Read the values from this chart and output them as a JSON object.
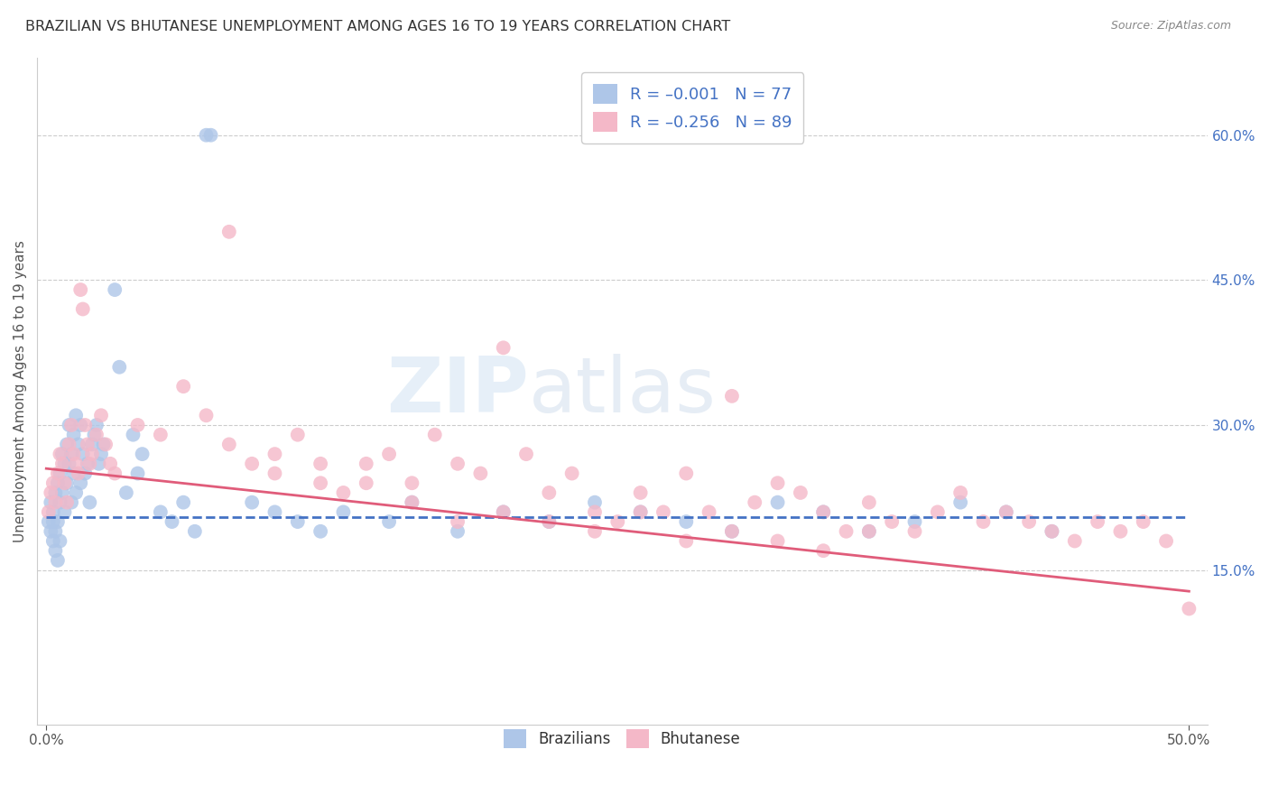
{
  "title": "BRAZILIAN VS BHUTANESE UNEMPLOYMENT AMONG AGES 16 TO 19 YEARS CORRELATION CHART",
  "source": "Source: ZipAtlas.com",
  "ylabel": "Unemployment Among Ages 16 to 19 years",
  "xlim": [
    0.0,
    0.5
  ],
  "ylim": [
    0.0,
    0.68
  ],
  "ytick_vals": [
    0.15,
    0.3,
    0.45,
    0.6
  ],
  "ytick_labels": [
    "15.0%",
    "30.0%",
    "45.0%",
    "60.0%"
  ],
  "watermark_text": "ZIPatlas",
  "brazil_color": "#aec6e8",
  "bhutan_color": "#f4b8c8",
  "brazil_line_color": "#4472c4",
  "bhutan_line_color": "#e05c7a",
  "grid_color": "#cccccc",
  "brazil_line_start_y": 0.205,
  "brazil_line_end_y": 0.205,
  "bhutan_line_start_y": 0.255,
  "bhutan_line_end_y": 0.128,
  "brazil_points_x": [
    0.001,
    0.002,
    0.002,
    0.003,
    0.003,
    0.003,
    0.004,
    0.004,
    0.004,
    0.005,
    0.005,
    0.005,
    0.006,
    0.006,
    0.006,
    0.007,
    0.007,
    0.008,
    0.008,
    0.009,
    0.009,
    0.01,
    0.01,
    0.011,
    0.011,
    0.012,
    0.012,
    0.013,
    0.013,
    0.014,
    0.015,
    0.015,
    0.016,
    0.017,
    0.018,
    0.019,
    0.02,
    0.021,
    0.022,
    0.023,
    0.024,
    0.025,
    0.03,
    0.032,
    0.035,
    0.038,
    0.04,
    0.042,
    0.05,
    0.055,
    0.06,
    0.065,
    0.07,
    0.072,
    0.09,
    0.1,
    0.11,
    0.12,
    0.13,
    0.15,
    0.16,
    0.18,
    0.2,
    0.22,
    0.24,
    0.26,
    0.28,
    0.3,
    0.32,
    0.34,
    0.36,
    0.38,
    0.4,
    0.42,
    0.44
  ],
  "brazil_points_y": [
    0.2,
    0.22,
    0.19,
    0.21,
    0.18,
    0.2,
    0.23,
    0.17,
    0.19,
    0.24,
    0.2,
    0.16,
    0.25,
    0.22,
    0.18,
    0.27,
    0.23,
    0.26,
    0.21,
    0.28,
    0.24,
    0.3,
    0.26,
    0.27,
    0.22,
    0.29,
    0.25,
    0.31,
    0.23,
    0.28,
    0.3,
    0.24,
    0.27,
    0.25,
    0.26,
    0.22,
    0.28,
    0.29,
    0.3,
    0.26,
    0.27,
    0.28,
    0.44,
    0.36,
    0.23,
    0.29,
    0.25,
    0.27,
    0.21,
    0.2,
    0.22,
    0.19,
    0.6,
    0.6,
    0.22,
    0.21,
    0.2,
    0.19,
    0.21,
    0.2,
    0.22,
    0.19,
    0.21,
    0.2,
    0.22,
    0.21,
    0.2,
    0.19,
    0.22,
    0.21,
    0.19,
    0.2,
    0.22,
    0.21,
    0.19
  ],
  "bhutan_points_x": [
    0.001,
    0.002,
    0.003,
    0.004,
    0.005,
    0.006,
    0.007,
    0.008,
    0.009,
    0.01,
    0.011,
    0.012,
    0.013,
    0.014,
    0.015,
    0.016,
    0.017,
    0.018,
    0.019,
    0.02,
    0.022,
    0.024,
    0.026,
    0.028,
    0.03,
    0.04,
    0.05,
    0.06,
    0.07,
    0.08,
    0.09,
    0.1,
    0.11,
    0.12,
    0.13,
    0.14,
    0.15,
    0.16,
    0.17,
    0.18,
    0.19,
    0.2,
    0.21,
    0.22,
    0.23,
    0.24,
    0.25,
    0.26,
    0.27,
    0.28,
    0.29,
    0.3,
    0.31,
    0.32,
    0.33,
    0.34,
    0.35,
    0.36,
    0.37,
    0.38,
    0.39,
    0.4,
    0.41,
    0.42,
    0.43,
    0.44,
    0.45,
    0.46,
    0.47,
    0.48,
    0.49,
    0.5,
    0.08,
    0.1,
    0.12,
    0.14,
    0.16,
    0.18,
    0.2,
    0.22,
    0.24,
    0.26,
    0.28,
    0.3,
    0.32,
    0.34,
    0.36
  ],
  "bhutan_points_y": [
    0.21,
    0.23,
    0.24,
    0.22,
    0.25,
    0.27,
    0.26,
    0.24,
    0.22,
    0.28,
    0.3,
    0.27,
    0.26,
    0.25,
    0.44,
    0.42,
    0.3,
    0.28,
    0.26,
    0.27,
    0.29,
    0.31,
    0.28,
    0.26,
    0.25,
    0.3,
    0.29,
    0.34,
    0.31,
    0.5,
    0.26,
    0.25,
    0.29,
    0.24,
    0.23,
    0.26,
    0.27,
    0.24,
    0.29,
    0.26,
    0.25,
    0.38,
    0.27,
    0.23,
    0.25,
    0.21,
    0.2,
    0.23,
    0.21,
    0.25,
    0.21,
    0.33,
    0.22,
    0.24,
    0.23,
    0.21,
    0.19,
    0.22,
    0.2,
    0.19,
    0.21,
    0.23,
    0.2,
    0.21,
    0.2,
    0.19,
    0.18,
    0.2,
    0.19,
    0.2,
    0.18,
    0.11,
    0.28,
    0.27,
    0.26,
    0.24,
    0.22,
    0.2,
    0.21,
    0.2,
    0.19,
    0.21,
    0.18,
    0.19,
    0.18,
    0.17,
    0.19
  ]
}
